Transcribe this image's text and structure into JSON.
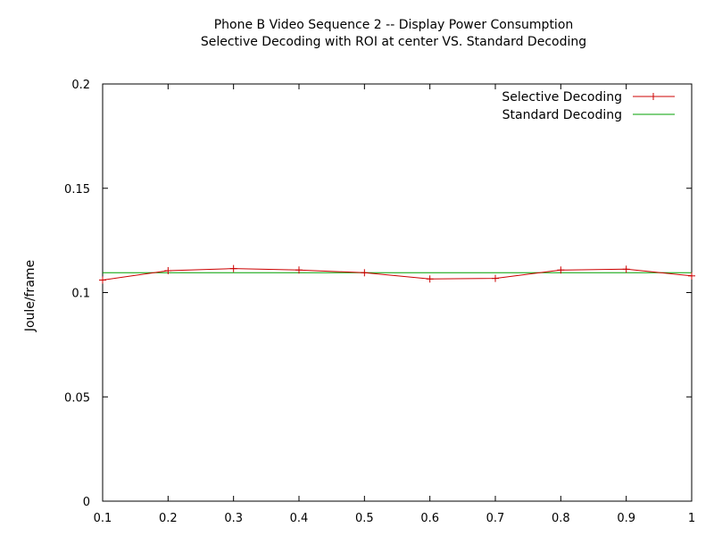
{
  "chart_data": {
    "type": "line",
    "title": "Phone B Video Sequence 2 -- Display Power Consumption",
    "subtitle": "Selective Decoding with ROI at center VS. Standard Decoding",
    "xlabel": "",
    "ylabel": "Joule/frame",
    "xlim": [
      0.1,
      1
    ],
    "ylim": [
      0,
      0.2
    ],
    "x_ticks": [
      "0.1",
      "0.2",
      "0.3",
      "0.4",
      "0.5",
      "0.6",
      "0.7",
      "0.8",
      "0.9",
      "1"
    ],
    "y_ticks": [
      "0",
      "0.05",
      "0.1",
      "0.15",
      "0.2"
    ],
    "grid": false,
    "legend_position": "top-right",
    "series": [
      {
        "name": "Selective Decoding",
        "color": "#cc0000",
        "marker": "plus",
        "x": [
          0.1,
          0.2,
          0.3,
          0.4,
          0.5,
          0.6,
          0.7,
          0.8,
          0.9,
          1.0
        ],
        "y": [
          0.106,
          0.1105,
          0.1115,
          0.1108,
          0.1095,
          0.1065,
          0.1068,
          0.1108,
          0.1112,
          0.108
        ]
      },
      {
        "name": "Standard Decoding",
        "color": "#00a000",
        "marker": "none",
        "x": [
          0.1,
          1.0
        ],
        "y": [
          0.1095,
          0.1095
        ]
      }
    ]
  }
}
